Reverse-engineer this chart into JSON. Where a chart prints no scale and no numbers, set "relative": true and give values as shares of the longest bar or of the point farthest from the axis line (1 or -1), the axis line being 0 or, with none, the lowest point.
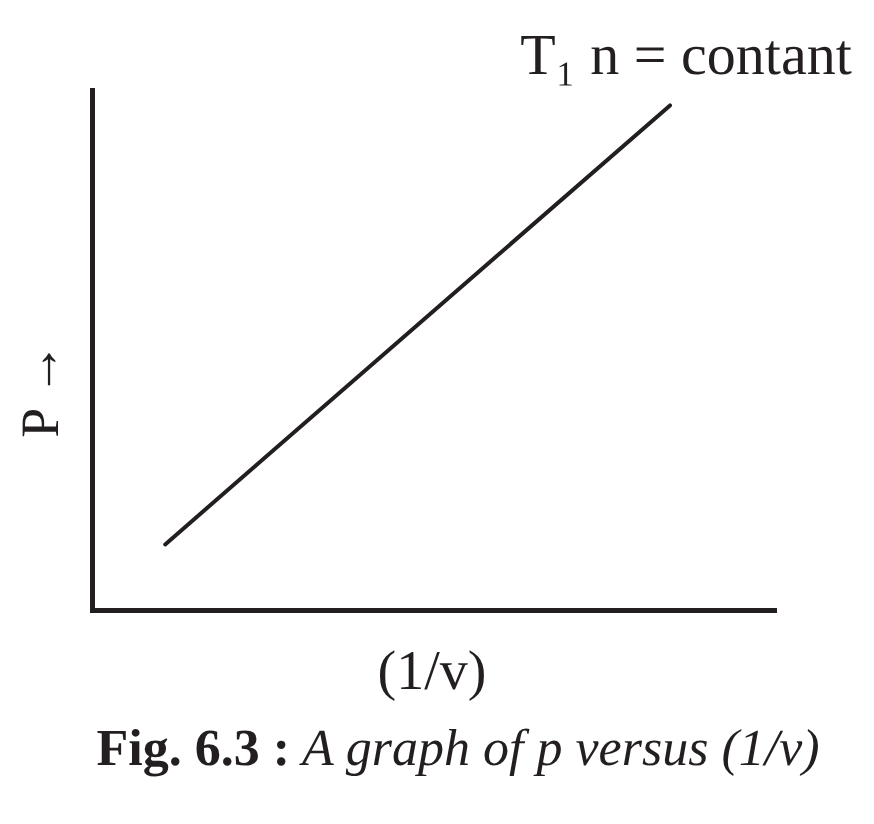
{
  "chart_data": {
    "type": "line",
    "title": "Fig. 6.3 : A graph of p versus (1/v)",
    "xlabel": "(1/v)",
    "ylabel": "P →",
    "categories": [
      null,
      null
    ],
    "relative": true,
    "series": [
      {
        "name": "T₁ n = contant",
        "color": "#231f20",
        "values": [
          0.13,
          1
        ]
      }
    ]
  }
}
